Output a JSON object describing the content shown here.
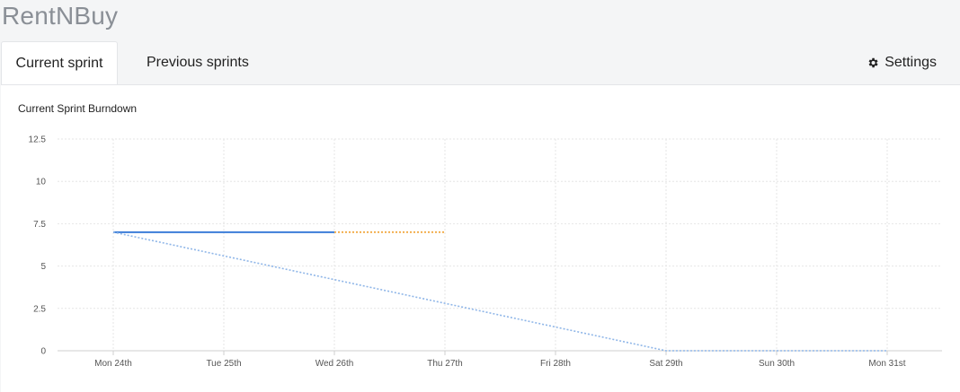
{
  "app": {
    "title": "RentNBuy"
  },
  "tabs": [
    {
      "label": "Current sprint",
      "active": true
    },
    {
      "label": "Previous sprints",
      "active": false
    }
  ],
  "settings": {
    "label": "Settings",
    "icon": "gear-icon"
  },
  "colors": {
    "actual": "#3b7dd8",
    "projected": "#f0a030",
    "ideal": "#8fb6e8",
    "grid": "#e6e6e6"
  },
  "chart_data": {
    "type": "line",
    "title": "Current Sprint Burndown",
    "x": [
      "Mon 24th",
      "Tue 25th",
      "Wed 26th",
      "Thu 27th",
      "Fri 28th",
      "Sat 29th",
      "Sun 30th",
      "Mon 31st"
    ],
    "ylim": [
      0,
      12.5
    ],
    "yticks": [
      "0",
      "2.5",
      "5",
      "7.5",
      "10",
      "12.5"
    ],
    "ytick_values": [
      0,
      2.5,
      5,
      7.5,
      10,
      12.5
    ],
    "grid": true,
    "series": [
      {
        "style": "solid",
        "color": "#3b7dd8",
        "values": [
          7,
          7,
          7,
          null,
          null,
          null,
          null,
          null
        ]
      },
      {
        "style": "dotted",
        "color": "#f0a030",
        "values": [
          null,
          null,
          7,
          7,
          null,
          null,
          null,
          null
        ]
      },
      {
        "style": "dotted",
        "color": "#8fb6e8",
        "values": [
          7,
          5.6,
          4.2,
          2.8,
          1.4,
          0,
          0,
          0
        ]
      }
    ]
  }
}
